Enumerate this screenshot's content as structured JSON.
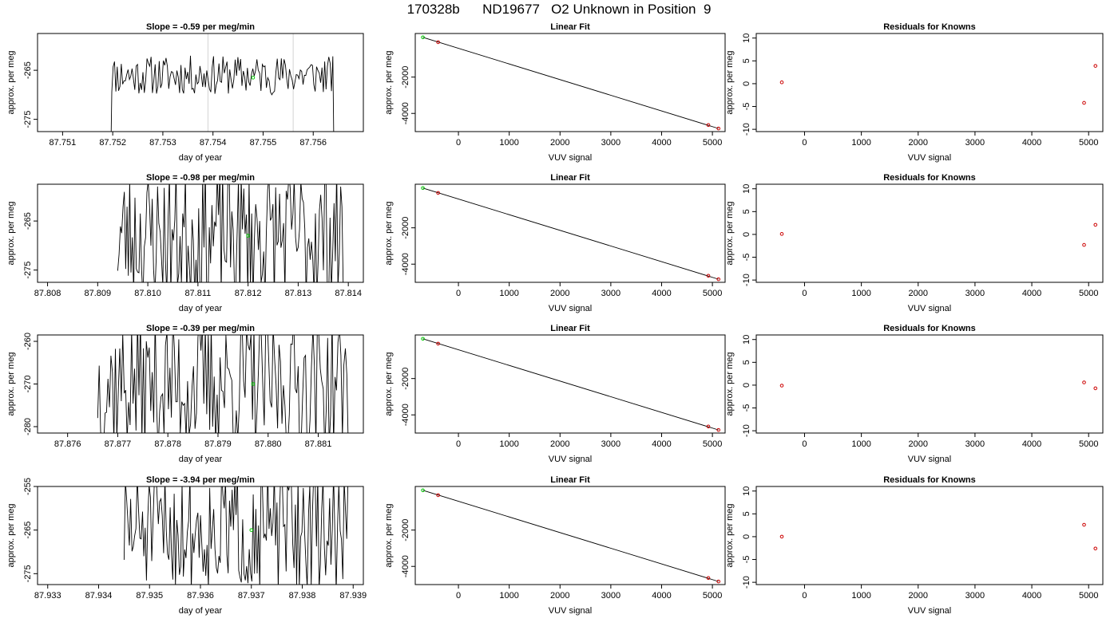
{
  "page": {
    "title": "170328b      ND19677   O2 Unknown in Position  9"
  },
  "colors": {
    "trace": "#000000",
    "gridline": "#d3d3d3",
    "green_point": "#00cc00",
    "red_point": "#cc0000",
    "axis": "#000000"
  },
  "chart_data": [
    {
      "type": "line",
      "panel": "time-1",
      "title": "Slope =  -0.59  per meg/min",
      "xlabel": "day of year",
      "ylabel": "approx. per meg",
      "xlim": [
        87.7505,
        87.757
      ],
      "ylim": [
        -277.5,
        -257.5
      ],
      "xticks": [
        87.751,
        87.752,
        87.753,
        87.754,
        87.755,
        87.756
      ],
      "xtick_labels": [
        "87.751",
        "87.752",
        "87.753",
        "87.754",
        "87.755",
        "87.756"
      ],
      "yticks": [
        -265,
        -275
      ],
      "ytick_labels": [
        "-265",
        "-275"
      ],
      "vlines": [
        87.7539,
        87.7556
      ],
      "marker": {
        "x": 87.7548,
        "y": -266.5
      },
      "trace": {
        "x_start": 87.7519,
        "x_end": 87.7565,
        "drop_start": 87.75198,
        "drop_end": 87.7564,
        "center": -266,
        "amp": 4,
        "seed": 11
      },
      "values_sampled": true
    },
    {
      "type": "line",
      "panel": "fit-1",
      "title": "Linear Fit",
      "xlabel": "VUV signal",
      "ylabel": "approx. per meg",
      "xlim": [
        -850,
        5250
      ],
      "ylim": [
        -5000,
        400
      ],
      "xticks": [
        0,
        1000,
        2000,
        3000,
        4000,
        5000
      ],
      "xtick_labels": [
        "0",
        "1000",
        "2000",
        "3000",
        "4000",
        "5000"
      ],
      "yticks": [
        -2000,
        -4000
      ],
      "ytick_labels": [
        "-2000",
        "-4000"
      ],
      "line": [
        [
          -700,
          190
        ],
        [
          5120,
          -4830
        ]
      ],
      "points_green": [
        [
          -700,
          190
        ]
      ],
      "points_red": [
        [
          -400,
          -80
        ],
        [
          4920,
          -4640
        ],
        [
          5120,
          -4830
        ]
      ]
    },
    {
      "type": "scatter",
      "panel": "resid-1",
      "title": "Residuals for Knowns",
      "xlabel": "VUV signal",
      "ylabel": "approx. per meg",
      "xlim": [
        -850,
        5250
      ],
      "ylim": [
        -10.5,
        11
      ],
      "xticks": [
        0,
        1000,
        2000,
        3000,
        4000,
        5000
      ],
      "xtick_labels": [
        "0",
        "1000",
        "2000",
        "3000",
        "4000",
        "5000"
      ],
      "yticks": [
        10,
        5,
        0,
        -5,
        -10
      ],
      "ytick_labels": [
        "10",
        "5",
        "0",
        "-5",
        "-10"
      ],
      "points_red": [
        [
          -400,
          0.3
        ],
        [
          4920,
          -4.2
        ],
        [
          5120,
          3.9
        ]
      ]
    },
    {
      "type": "line",
      "panel": "time-2",
      "title": "Slope =  -0.98  per meg/min",
      "xlabel": "day of year",
      "ylabel": "approx. per meg",
      "xlim": [
        87.8078,
        87.8143
      ],
      "ylim": [
        -277.5,
        -257.5
      ],
      "xticks": [
        87.808,
        87.809,
        87.81,
        87.811,
        87.812,
        87.813,
        87.814
      ],
      "xtick_labels": [
        "87.808",
        "87.809",
        "87.810",
        "87.811",
        "87.812",
        "87.813",
        "87.814"
      ],
      "yticks": [
        -265,
        -275
      ],
      "ytick_labels": [
        "-265",
        "-275"
      ],
      "marker": {
        "x": 87.812,
        "y": -268
      },
      "trace": {
        "x_start": 87.8094,
        "x_end": 87.8139,
        "center": -268,
        "amp": 14,
        "seed": 23
      },
      "values_sampled": true
    },
    {
      "type": "line",
      "panel": "fit-2",
      "title": "Linear Fit",
      "xlabel": "VUV signal",
      "ylabel": "approx. per meg",
      "xlim": [
        -850,
        5250
      ],
      "ylim": [
        -5000,
        400
      ],
      "xticks": [
        0,
        1000,
        2000,
        3000,
        4000,
        5000
      ],
      "xtick_labels": [
        "0",
        "1000",
        "2000",
        "3000",
        "4000",
        "5000"
      ],
      "yticks": [
        -2000,
        -4000
      ],
      "ytick_labels": [
        "-2000",
        "-4000"
      ],
      "line": [
        [
          -700,
          190
        ],
        [
          5120,
          -4830
        ]
      ],
      "points_green": [
        [
          -700,
          190
        ]
      ],
      "points_red": [
        [
          -400,
          -80
        ],
        [
          4920,
          -4640
        ],
        [
          5120,
          -4830
        ]
      ]
    },
    {
      "type": "scatter",
      "panel": "resid-2",
      "title": "Residuals for Knowns",
      "xlabel": "VUV signal",
      "ylabel": "approx. per meg",
      "xlim": [
        -850,
        5250
      ],
      "ylim": [
        -10.5,
        11
      ],
      "xticks": [
        0,
        1000,
        2000,
        3000,
        4000,
        5000
      ],
      "xtick_labels": [
        "0",
        "1000",
        "2000",
        "3000",
        "4000",
        "5000"
      ],
      "yticks": [
        10,
        5,
        0,
        -5,
        -10
      ],
      "ytick_labels": [
        "10",
        "5",
        "0",
        "-5",
        "-10"
      ],
      "points_red": [
        [
          -400,
          0.1
        ],
        [
          4920,
          -2.3
        ],
        [
          5120,
          2.1
        ]
      ]
    },
    {
      "type": "line",
      "panel": "time-3",
      "title": "Slope =  -0.39  per meg/min",
      "xlabel": "day of year",
      "ylabel": "approx. per meg",
      "xlim": [
        87.8754,
        87.8819
      ],
      "ylim": [
        -281.5,
        -258.5
      ],
      "xticks": [
        87.876,
        87.877,
        87.878,
        87.879,
        87.88,
        87.881
      ],
      "xtick_labels": [
        "87.876",
        "87.877",
        "87.878",
        "87.879",
        "87.880",
        "87.881"
      ],
      "yticks": [
        -260,
        -270,
        -280
      ],
      "ytick_labels": [
        "-260",
        "-270",
        "-280"
      ],
      "marker": {
        "x": 87.8797,
        "y": -270
      },
      "trace": {
        "x_start": 87.8766,
        "x_end": 87.8816,
        "center": -270,
        "amp": 16,
        "seed": 37
      },
      "values_sampled": true
    },
    {
      "type": "line",
      "panel": "fit-3",
      "title": "Linear Fit",
      "xlabel": "VUV signal",
      "ylabel": "approx. per meg",
      "xlim": [
        -850,
        5250
      ],
      "ylim": [
        -5000,
        400
      ],
      "xticks": [
        0,
        1000,
        2000,
        3000,
        4000,
        5000
      ],
      "xtick_labels": [
        "0",
        "1000",
        "2000",
        "3000",
        "4000",
        "5000"
      ],
      "yticks": [
        -2000,
        -4000
      ],
      "ytick_labels": [
        "-2000",
        "-4000"
      ],
      "line": [
        [
          -700,
          190
        ],
        [
          5120,
          -4830
        ]
      ],
      "points_green": [
        [
          -700,
          190
        ]
      ],
      "points_red": [
        [
          -400,
          -80
        ],
        [
          4920,
          -4640
        ],
        [
          5120,
          -4830
        ]
      ]
    },
    {
      "type": "scatter",
      "panel": "resid-3",
      "title": "Residuals for Knowns",
      "xlabel": "VUV signal",
      "ylabel": "approx. per meg",
      "xlim": [
        -850,
        5250
      ],
      "ylim": [
        -10.5,
        11
      ],
      "xticks": [
        0,
        1000,
        2000,
        3000,
        4000,
        5000
      ],
      "xtick_labels": [
        "0",
        "1000",
        "2000",
        "3000",
        "4000",
        "5000"
      ],
      "yticks": [
        10,
        5,
        0,
        -5,
        -10
      ],
      "ytick_labels": [
        "10",
        "5",
        "0",
        "-5",
        "-10"
      ],
      "points_red": [
        [
          -400,
          -0.1
        ],
        [
          4920,
          0.6
        ],
        [
          5120,
          -0.7
        ]
      ]
    },
    {
      "type": "line",
      "panel": "time-4",
      "title": "Slope =  -3.94  per meg/min",
      "xlabel": "day of year",
      "ylabel": "approx. per meg",
      "xlim": [
        87.9328,
        87.9392
      ],
      "ylim": [
        -277.5,
        -255
      ],
      "xticks": [
        87.933,
        87.934,
        87.935,
        87.936,
        87.937,
        87.938,
        87.939
      ],
      "xtick_labels": [
        "87.933",
        "87.934",
        "87.935",
        "87.936",
        "87.937",
        "87.938",
        "87.939"
      ],
      "yticks": [
        -255,
        -265,
        -275
      ],
      "ytick_labels": [
        "-255",
        "-265",
        "-275"
      ],
      "marker": {
        "x": 87.937,
        "y": -265
      },
      "trace": {
        "x_start": 87.9345,
        "x_end": 87.9389,
        "center": -265,
        "amp": 14,
        "seed": 51
      },
      "values_sampled": true
    },
    {
      "type": "line",
      "panel": "fit-4",
      "title": "Linear Fit",
      "xlabel": "VUV signal",
      "ylabel": "approx. per meg",
      "xlim": [
        -850,
        5250
      ],
      "ylim": [
        -5000,
        400
      ],
      "xticks": [
        0,
        1000,
        2000,
        3000,
        4000,
        5000
      ],
      "xtick_labels": [
        "0",
        "1000",
        "2000",
        "3000",
        "4000",
        "5000"
      ],
      "yticks": [
        -2000,
        -4000
      ],
      "ytick_labels": [
        "-2000",
        "-4000"
      ],
      "line": [
        [
          -700,
          190
        ],
        [
          5120,
          -4830
        ]
      ],
      "points_green": [
        [
          -700,
          190
        ]
      ],
      "points_red": [
        [
          -400,
          -80
        ],
        [
          4920,
          -4640
        ],
        [
          5120,
          -4830
        ]
      ]
    },
    {
      "type": "scatter",
      "panel": "resid-4",
      "title": "Residuals for Knowns",
      "xlabel": "VUV signal",
      "ylabel": "approx. per meg",
      "xlim": [
        -850,
        5250
      ],
      "ylim": [
        -10.5,
        11
      ],
      "xticks": [
        0,
        1000,
        2000,
        3000,
        4000,
        5000
      ],
      "xtick_labels": [
        "0",
        "1000",
        "2000",
        "3000",
        "4000",
        "5000"
      ],
      "yticks": [
        10,
        5,
        0,
        -5,
        -10
      ],
      "ytick_labels": [
        "10",
        "5",
        "0",
        "-5",
        "-10"
      ],
      "points_red": [
        [
          -400,
          0.0
        ],
        [
          4920,
          2.6
        ],
        [
          5120,
          -2.6
        ]
      ]
    }
  ]
}
